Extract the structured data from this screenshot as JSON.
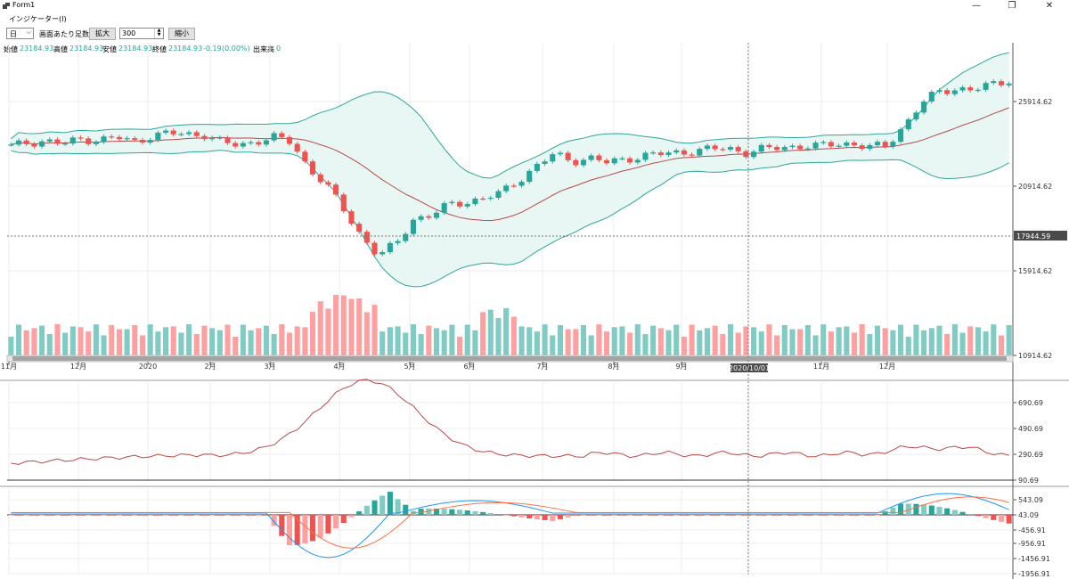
{
  "window": {
    "title": "Form1",
    "minimize": "—",
    "maximize": "❐",
    "close": "✕"
  },
  "menu": {
    "items": [
      "インジケーター(I)"
    ]
  },
  "toolbar": {
    "period_value": "日",
    "bars_label": "画面あたり足数:",
    "zoom_in": "拡大",
    "bars_value": "300",
    "zoom_out": "縮小"
  },
  "info": {
    "open_label": "始値",
    "open_value": "23184.93",
    "high_label": "高値",
    "high_value": "23184.93",
    "low_label": "安値",
    "low_value": "23184.93",
    "close_label": "終値",
    "close_value": "23184.93",
    "change": "-0.19",
    "change_pct": "(0.00%)",
    "volume_label": "出来高",
    "volume_value": "0"
  },
  "colors": {
    "up": "#26a69a",
    "down": "#ef5350",
    "band": "#2ea79b",
    "band_fill": "#e8f6f4",
    "ma": "#b84a4a",
    "macd": "#2196f3",
    "signal": "#ff7043"
  },
  "chart_data": [
    {
      "type": "candlestick",
      "title": "",
      "y_ticks": [
        "25914.62",
        "20914.62",
        "15914.62",
        "10914.62"
      ],
      "crosshair_value": "17944.59",
      "crosshair_date": "2020/10/01",
      "x_ticks": [
        "11月",
        "12月",
        "2020",
        "2月",
        "3月",
        "4月",
        "5月",
        "6月",
        "7月",
        "8月",
        "9月",
        "11月",
        "12月"
      ],
      "close": [
        23250,
        23500,
        23600,
        23400,
        23700,
        23650,
        23800,
        23500,
        23900,
        24050,
        23950,
        24000,
        23500,
        23300,
        23600,
        23800,
        23500,
        22000,
        21000,
        19500,
        18000,
        16800,
        17500,
        19000,
        19200,
        19800,
        20000,
        20200,
        20500,
        21300,
        22100,
        22800,
        22400,
        22600,
        22300,
        22500,
        22700,
        22800,
        22900,
        23000,
        23100,
        23150,
        22900,
        23100,
        23200,
        23300,
        23250,
        23400,
        23450,
        23200,
        23300,
        24500,
        25800,
        26500,
        26700,
        26600,
        26900,
        27200
      ],
      "volume_ticks": [
        "690.69",
        "490.69",
        "290.69",
        "90.69"
      ],
      "macd_ticks": [
        "543.09",
        "43.09",
        "-456.91",
        "-956.91",
        "-1456.91",
        "-1956.91"
      ]
    }
  ]
}
